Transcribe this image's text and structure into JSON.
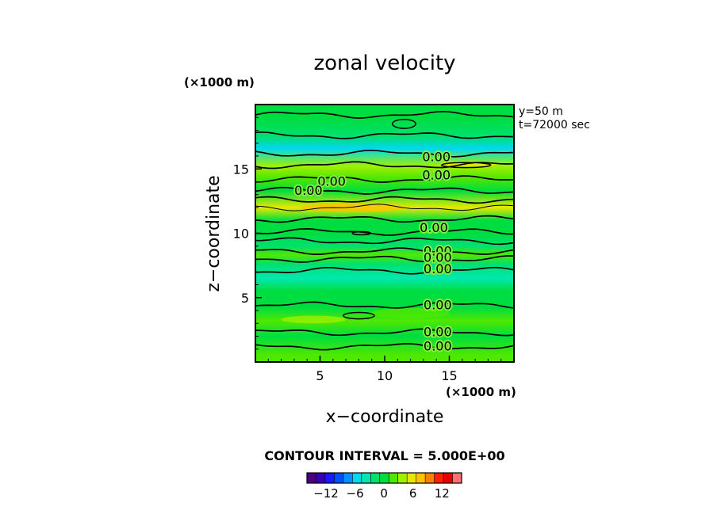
{
  "chart_data": {
    "type": "contour",
    "title": "zonal velocity",
    "xlabel": "x−coordinate",
    "ylabel": "z−coordinate",
    "x_unit": "(×1000 m)",
    "y_unit": "(×1000 m)",
    "xlim": [
      0,
      20
    ],
    "ylim": [
      0,
      20
    ],
    "x_ticks": [
      5,
      10,
      15
    ],
    "y_ticks": [
      5,
      10,
      15
    ],
    "x_tick_labels": [
      "5",
      "10",
      "15"
    ],
    "y_tick_labels": [
      "5",
      "10",
      "15"
    ],
    "info_lines": [
      "y=50 m",
      "t=72000 sec"
    ],
    "contour_interval_text": "CONTOUR INTERVAL = 5.000E+00",
    "colorbar": {
      "min": -15,
      "max": 15,
      "step": 2,
      "tick_labels": [
        "−12",
        "−6",
        "0",
        "6",
        "12"
      ],
      "tick_values": [
        -12,
        -6,
        0,
        6,
        12
      ],
      "colors": [
        "#4b0082",
        "#3a00b8",
        "#1a1aff",
        "#0050ff",
        "#0090ff",
        "#00d8f0",
        "#00e8b0",
        "#00e070",
        "#00dd40",
        "#50e800",
        "#a0f000",
        "#e8e800",
        "#ffc000",
        "#ff8000",
        "#ff2000",
        "#e80000",
        "#ff7070"
      ]
    },
    "contour_labels": [
      {
        "text": "0.00",
        "x": 14.0,
        "z": 15.9
      },
      {
        "text": "0.00",
        "x": 14.0,
        "z": 14.5
      },
      {
        "text": "0.00",
        "x": 5.9,
        "z": 14.0
      },
      {
        "text": "0.00",
        "x": 4.1,
        "z": 13.3
      },
      {
        "text": "0.00",
        "x": 13.8,
        "z": 10.4
      },
      {
        "text": "0.00",
        "x": 14.1,
        "z": 8.6
      },
      {
        "text": "0.00",
        "x": 14.1,
        "z": 8.1
      },
      {
        "text": "0.00",
        "x": 14.1,
        "z": 7.2
      },
      {
        "text": "0.00",
        "x": 14.1,
        "z": 4.4
      },
      {
        "text": "0.00",
        "x": 14.1,
        "z": 2.3
      },
      {
        "text": "0.00",
        "x": 14.1,
        "z": 1.2
      }
    ],
    "contour_lines_z": [
      19.2,
      17.6,
      16.2,
      15.3,
      14.2,
      13.3,
      12.6,
      12.0,
      11.1,
      10.1,
      9.4,
      8.6,
      8.0,
      7.1,
      4.4,
      2.3,
      1.2
    ],
    "bands": [
      {
        "z": 19.0,
        "value": 1.5
      },
      {
        "z": 17.5,
        "value": 0.5
      },
      {
        "z": 16.6,
        "value": -3.5
      },
      {
        "z": 15.2,
        "value": 5.5
      },
      {
        "z": 14.3,
        "value": 3.5
      },
      {
        "z": 13.3,
        "value": 1.5
      },
      {
        "z": 12.0,
        "value": 7.5
      },
      {
        "z": 11.0,
        "value": 1.0
      },
      {
        "z": 10.0,
        "value": 2.5
      },
      {
        "z": 9.0,
        "value": 0.5
      },
      {
        "z": 8.3,
        "value": 3.0
      },
      {
        "z": 7.6,
        "value": 0.0
      },
      {
        "z": 6.5,
        "value": -1.5
      },
      {
        "z": 5.5,
        "value": 1.5
      },
      {
        "z": 4.2,
        "value": 2.5
      },
      {
        "z": 3.2,
        "value": 4.0
      },
      {
        "z": 2.0,
        "value": 1.5
      },
      {
        "z": 0.5,
        "value": 3.0
      }
    ]
  }
}
